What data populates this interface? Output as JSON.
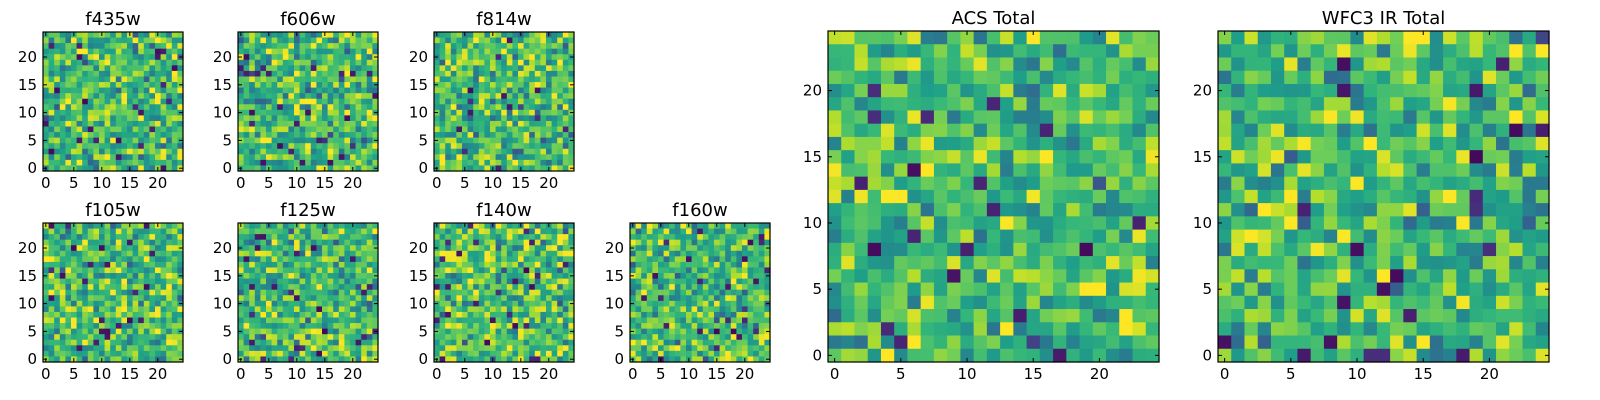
{
  "chart_data": [
    {
      "type": "heatmap",
      "id": "f435w",
      "title": "f435w",
      "grid": 25,
      "xticks": [
        "0",
        "5",
        "10",
        "15",
        "20"
      ],
      "yticks": [
        "0",
        "5",
        "10",
        "15",
        "20"
      ],
      "xlim": [
        0,
        25
      ],
      "ylim": [
        0,
        25
      ],
      "colormap": "viridis",
      "seed": 11
    },
    {
      "type": "heatmap",
      "id": "f606w",
      "title": "f606w",
      "grid": 25,
      "xticks": [
        "0",
        "5",
        "10",
        "15",
        "20"
      ],
      "yticks": [
        "0",
        "5",
        "10",
        "15",
        "20"
      ],
      "xlim": [
        0,
        25
      ],
      "ylim": [
        0,
        25
      ],
      "colormap": "viridis",
      "seed": 23
    },
    {
      "type": "heatmap",
      "id": "f814w",
      "title": "f814w",
      "grid": 25,
      "xticks": [
        "0",
        "5",
        "10",
        "15",
        "20"
      ],
      "yticks": [
        "0",
        "5",
        "10",
        "15",
        "20"
      ],
      "xlim": [
        0,
        25
      ],
      "ylim": [
        0,
        25
      ],
      "colormap": "viridis",
      "seed": 37
    },
    {
      "type": "heatmap",
      "id": "f105w",
      "title": "f105w",
      "grid": 25,
      "xticks": [
        "0",
        "5",
        "10",
        "15",
        "20"
      ],
      "yticks": [
        "0",
        "5",
        "10",
        "15",
        "20"
      ],
      "xlim": [
        0,
        25
      ],
      "ylim": [
        0,
        25
      ],
      "colormap": "viridis",
      "seed": 41
    },
    {
      "type": "heatmap",
      "id": "f125w",
      "title": "f125w",
      "grid": 25,
      "xticks": [
        "0",
        "5",
        "10",
        "15",
        "20"
      ],
      "yticks": [
        "0",
        "5",
        "10",
        "15",
        "20"
      ],
      "xlim": [
        0,
        25
      ],
      "ylim": [
        0,
        25
      ],
      "colormap": "viridis",
      "seed": 53
    },
    {
      "type": "heatmap",
      "id": "f140w",
      "title": "f140w",
      "grid": 25,
      "xticks": [
        "0",
        "5",
        "10",
        "15",
        "20"
      ],
      "yticks": [
        "0",
        "5",
        "10",
        "15",
        "20"
      ],
      "xlim": [
        0,
        25
      ],
      "ylim": [
        0,
        25
      ],
      "colormap": "viridis",
      "seed": 67
    },
    {
      "type": "heatmap",
      "id": "f160w",
      "title": "f160w",
      "grid": 25,
      "xticks": [
        "0",
        "5",
        "10",
        "15",
        "20"
      ],
      "yticks": [
        "0",
        "5",
        "10",
        "15",
        "20"
      ],
      "xlim": [
        0,
        25
      ],
      "ylim": [
        0,
        25
      ],
      "colormap": "viridis",
      "seed": 79
    },
    {
      "type": "heatmap",
      "id": "acs-total",
      "title": "ACS Total",
      "grid": 25,
      "xticks": [
        "0",
        "5",
        "10",
        "15",
        "20"
      ],
      "yticks": [
        "0",
        "5",
        "10",
        "15",
        "20"
      ],
      "xlim": [
        0,
        25
      ],
      "ylim": [
        0,
        25
      ],
      "colormap": "viridis",
      "seed": 97
    },
    {
      "type": "heatmap",
      "id": "wfc3-ir-total",
      "title": "WFC3 IR Total",
      "grid": 25,
      "xticks": [
        "0",
        "5",
        "10",
        "15",
        "20"
      ],
      "yticks": [
        "0",
        "5",
        "10",
        "15",
        "20"
      ],
      "xlim": [
        0,
        25
      ],
      "ylim": [
        0,
        25
      ],
      "colormap": "viridis",
      "seed": 131
    }
  ]
}
